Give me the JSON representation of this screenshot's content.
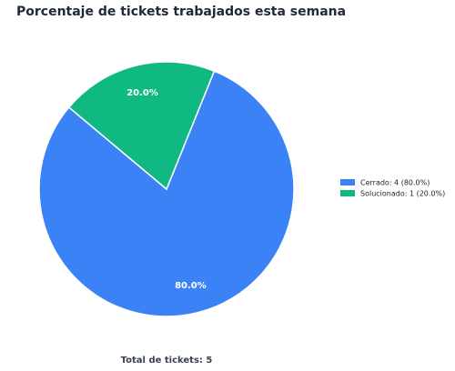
{
  "chart_data": {
    "type": "pie",
    "title": "Porcentaje de tickets trabajados esta semana",
    "categories": [
      "Cerrado: 4 (80.0%)",
      "Solucionado: 1 (20.0%)"
    ],
    "values": [
      80,
      20
    ],
    "value_labels": [
      "80.0%",
      "20.0%"
    ],
    "colors": [
      "#3b82f6",
      "#10b981"
    ],
    "legend": "right",
    "footer": "Total de tickets: 5"
  }
}
